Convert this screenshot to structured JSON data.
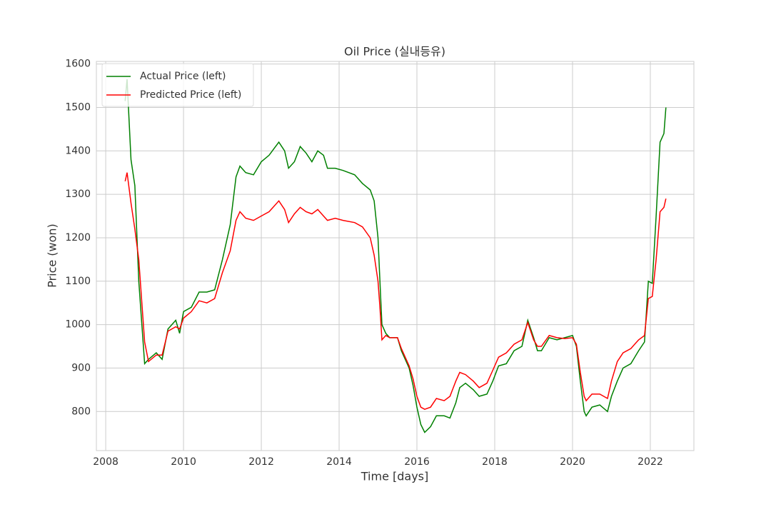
{
  "chart_data": {
    "type": "line",
    "title": "Oil Price (실내등유)",
    "xlabel": "Time [days]",
    "ylabel": "Price (won)",
    "x": [
      2008.5,
      2008.55,
      2008.65,
      2008.75,
      2008.85,
      2009.0,
      2009.1,
      2009.3,
      2009.45,
      2009.6,
      2009.8,
      2009.9,
      2010.0,
      2010.2,
      2010.4,
      2010.6,
      2010.8,
      2011.0,
      2011.2,
      2011.35,
      2011.45,
      2011.6,
      2011.8,
      2012.0,
      2012.2,
      2012.45,
      2012.6,
      2012.7,
      2012.85,
      2013.0,
      2013.15,
      2013.3,
      2013.45,
      2013.6,
      2013.7,
      2013.9,
      2014.1,
      2014.4,
      2014.6,
      2014.8,
      2014.9,
      2015.0,
      2015.05,
      2015.1,
      2015.2,
      2015.3,
      2015.5,
      2015.6,
      2015.8,
      2015.9,
      2016.0,
      2016.1,
      2016.2,
      2016.35,
      2016.5,
      2016.7,
      2016.85,
      2017.0,
      2017.1,
      2017.25,
      2017.45,
      2017.6,
      2017.8,
      2017.95,
      2018.1,
      2018.3,
      2018.5,
      2018.7,
      2018.85,
      2019.0,
      2019.1,
      2019.2,
      2019.4,
      2019.6,
      2019.8,
      2020.0,
      2020.1,
      2020.2,
      2020.3,
      2020.35,
      2020.5,
      2020.7,
      2020.9,
      2021.0,
      2021.15,
      2021.3,
      2021.5,
      2021.7,
      2021.85,
      2021.95,
      2022.05,
      2022.15,
      2022.25,
      2022.35,
      2022.4
    ],
    "series": [
      {
        "name": "Actual Price (left)",
        "color": "#008000",
        "values": [
          1515,
          1565,
          1380,
          1320,
          1100,
          910,
          920,
          935,
          920,
          990,
          1010,
          980,
          1030,
          1040,
          1075,
          1075,
          1080,
          1150,
          1230,
          1340,
          1365,
          1350,
          1345,
          1375,
          1390,
          1420,
          1400,
          1360,
          1375,
          1410,
          1395,
          1375,
          1400,
          1390,
          1360,
          1360,
          1355,
          1345,
          1325,
          1310,
          1285,
          1200,
          1100,
          1000,
          980,
          970,
          970,
          940,
          900,
          860,
          810,
          770,
          752,
          765,
          790,
          790,
          785,
          820,
          855,
          865,
          850,
          835,
          840,
          870,
          905,
          910,
          940,
          950,
          1010,
          970,
          940,
          940,
          970,
          965,
          970,
          975,
          950,
          870,
          800,
          790,
          810,
          815,
          800,
          835,
          870,
          900,
          910,
          940,
          960,
          1100,
          1095,
          1250,
          1420,
          1440,
          1500
        ]
      },
      {
        "name": "Predicted Price (left)",
        "color": "#ff0000",
        "values": [
          1330,
          1350,
          1280,
          1220,
          1150,
          960,
          915,
          930,
          930,
          985,
          995,
          990,
          1015,
          1030,
          1055,
          1050,
          1060,
          1120,
          1170,
          1240,
          1260,
          1245,
          1240,
          1250,
          1260,
          1285,
          1265,
          1235,
          1255,
          1270,
          1260,
          1255,
          1265,
          1250,
          1240,
          1245,
          1240,
          1235,
          1225,
          1200,
          1160,
          1100,
          1040,
          965,
          975,
          970,
          970,
          945,
          905,
          875,
          835,
          810,
          805,
          810,
          830,
          825,
          835,
          870,
          890,
          885,
          870,
          855,
          865,
          895,
          925,
          935,
          955,
          965,
          1005,
          965,
          950,
          950,
          975,
          970,
          968,
          970,
          955,
          890,
          835,
          825,
          840,
          840,
          830,
          870,
          915,
          935,
          945,
          965,
          975,
          1060,
          1065,
          1150,
          1260,
          1270,
          1290
        ]
      }
    ],
    "xlim": [
      2007.76,
      2023.12
    ],
    "ylim": [
      710,
      1606
    ],
    "xticks": [
      2008,
      2010,
      2012,
      2014,
      2016,
      2018,
      2020,
      2022
    ],
    "yticks": [
      800,
      900,
      1000,
      1100,
      1200,
      1300,
      1400,
      1500,
      1600
    ],
    "grid": true,
    "legend": "upper-left"
  }
}
